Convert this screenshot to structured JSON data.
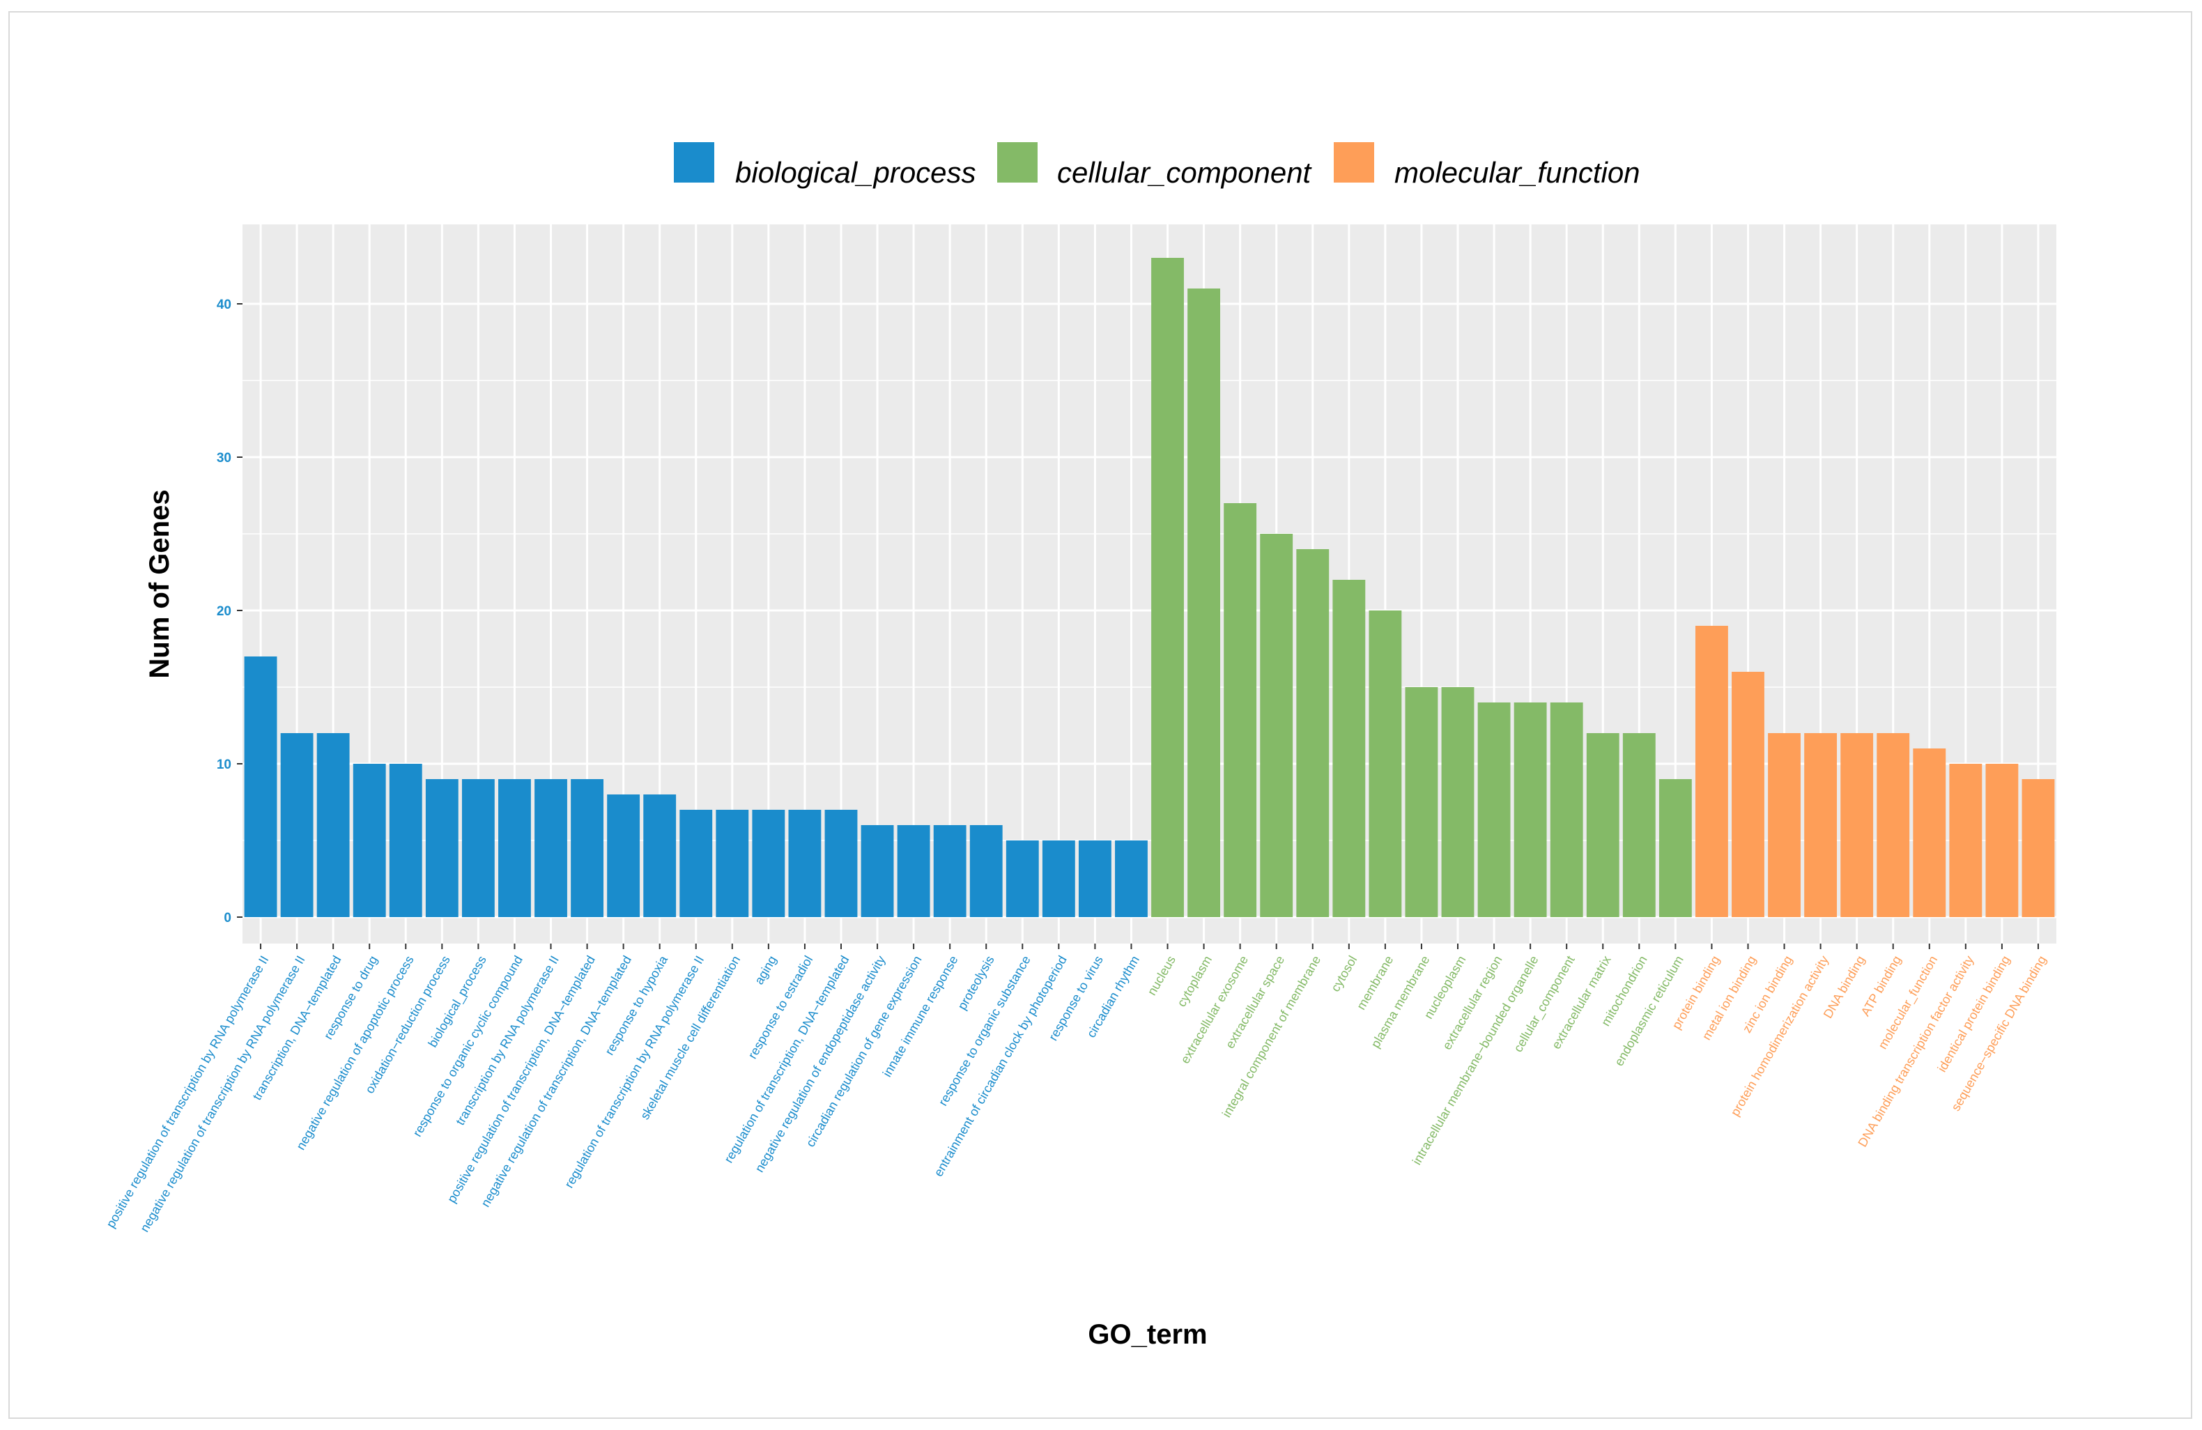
{
  "chart_data": {
    "type": "bar",
    "title": "",
    "xlabel": "GO_term",
    "ylabel": "Num of Genes",
    "ylim": [
      0,
      44.5
    ],
    "yticks": [
      0,
      10,
      20,
      30,
      40
    ],
    "legend_position": "top",
    "legend": [
      {
        "name": "biological_process",
        "color": "#1a8ccc"
      },
      {
        "name": "cellular_component",
        "color": "#84ba67"
      },
      {
        "name": "molecular_function",
        "color": "#fe9e58"
      }
    ],
    "bars": [
      {
        "label": "positive regulation of transcription by RNA polymerase II",
        "value": 17,
        "group": "biological_process"
      },
      {
        "label": "negative regulation of transcription by RNA polymerase II",
        "value": 12,
        "group": "biological_process"
      },
      {
        "label": "transcription, DNA−templated",
        "value": 12,
        "group": "biological_process"
      },
      {
        "label": "response to drug",
        "value": 10,
        "group": "biological_process"
      },
      {
        "label": "negative regulation of apoptotic process",
        "value": 10,
        "group": "biological_process"
      },
      {
        "label": "oxidation−reduction process",
        "value": 9,
        "group": "biological_process"
      },
      {
        "label": "biological_process",
        "value": 9,
        "group": "biological_process"
      },
      {
        "label": "response to organic cyclic compound",
        "value": 9,
        "group": "biological_process"
      },
      {
        "label": "transcription by RNA polymerase II",
        "value": 9,
        "group": "biological_process"
      },
      {
        "label": "positive regulation of transcription, DNA−templated",
        "value": 9,
        "group": "biological_process"
      },
      {
        "label": "negative regulation of transcription, DNA−templated",
        "value": 8,
        "group": "biological_process"
      },
      {
        "label": "response to hypoxia",
        "value": 8,
        "group": "biological_process"
      },
      {
        "label": "regulation of transcription by RNA polymerase II",
        "value": 7,
        "group": "biological_process"
      },
      {
        "label": "skeletal muscle cell differentiation",
        "value": 7,
        "group": "biological_process"
      },
      {
        "label": "aging",
        "value": 7,
        "group": "biological_process"
      },
      {
        "label": "response to estradiol",
        "value": 7,
        "group": "biological_process"
      },
      {
        "label": "regulation of transcription, DNA−templated",
        "value": 7,
        "group": "biological_process"
      },
      {
        "label": "negative regulation of endopeptidase activity",
        "value": 6,
        "group": "biological_process"
      },
      {
        "label": "circadian regulation of gene expression",
        "value": 6,
        "group": "biological_process"
      },
      {
        "label": "innate immune response",
        "value": 6,
        "group": "biological_process"
      },
      {
        "label": "proteolysis",
        "value": 6,
        "group": "biological_process"
      },
      {
        "label": "response to organic substance",
        "value": 5,
        "group": "biological_process"
      },
      {
        "label": "entrainment of circadian clock by photoperiod",
        "value": 5,
        "group": "biological_process"
      },
      {
        "label": "response to virus",
        "value": 5,
        "group": "biological_process"
      },
      {
        "label": "circadian rhythm",
        "value": 5,
        "group": "biological_process"
      },
      {
        "label": "nucleus",
        "value": 43,
        "group": "cellular_component"
      },
      {
        "label": "cytoplasm",
        "value": 41,
        "group": "cellular_component"
      },
      {
        "label": "extracellular exosome",
        "value": 27,
        "group": "cellular_component"
      },
      {
        "label": "extracellular space",
        "value": 25,
        "group": "cellular_component"
      },
      {
        "label": "integral component of membrane",
        "value": 24,
        "group": "cellular_component"
      },
      {
        "label": "cytosol",
        "value": 22,
        "group": "cellular_component"
      },
      {
        "label": "membrane",
        "value": 20,
        "group": "cellular_component"
      },
      {
        "label": "plasma membrane",
        "value": 15,
        "group": "cellular_component"
      },
      {
        "label": "nucleoplasm",
        "value": 15,
        "group": "cellular_component"
      },
      {
        "label": "extracellular region",
        "value": 14,
        "group": "cellular_component"
      },
      {
        "label": "intracellular membrane−bounded organelle",
        "value": 14,
        "group": "cellular_component"
      },
      {
        "label": "cellular_component",
        "value": 14,
        "group": "cellular_component"
      },
      {
        "label": "extracellular matrix",
        "value": 12,
        "group": "cellular_component"
      },
      {
        "label": "mitochondrion",
        "value": 12,
        "group": "cellular_component"
      },
      {
        "label": "endoplasmic reticulum",
        "value": 9,
        "group": "cellular_component"
      },
      {
        "label": "protein binding",
        "value": 19,
        "group": "molecular_function"
      },
      {
        "label": "metal ion binding",
        "value": 16,
        "group": "molecular_function"
      },
      {
        "label": "zinc ion binding",
        "value": 12,
        "group": "molecular_function"
      },
      {
        "label": "protein homodimerization activity",
        "value": 12,
        "group": "molecular_function"
      },
      {
        "label": "DNA binding",
        "value": 12,
        "group": "molecular_function"
      },
      {
        "label": "ATP binding",
        "value": 12,
        "group": "molecular_function"
      },
      {
        "label": "molecular_function",
        "value": 11,
        "group": "molecular_function"
      },
      {
        "label": "DNA binding transcription factor activity",
        "value": 10,
        "group": "molecular_function"
      },
      {
        "label": "identical protein binding",
        "value": 10,
        "group": "molecular_function"
      },
      {
        "label": "sequence−specific DNA binding",
        "value": 9,
        "group": "molecular_function"
      }
    ]
  }
}
